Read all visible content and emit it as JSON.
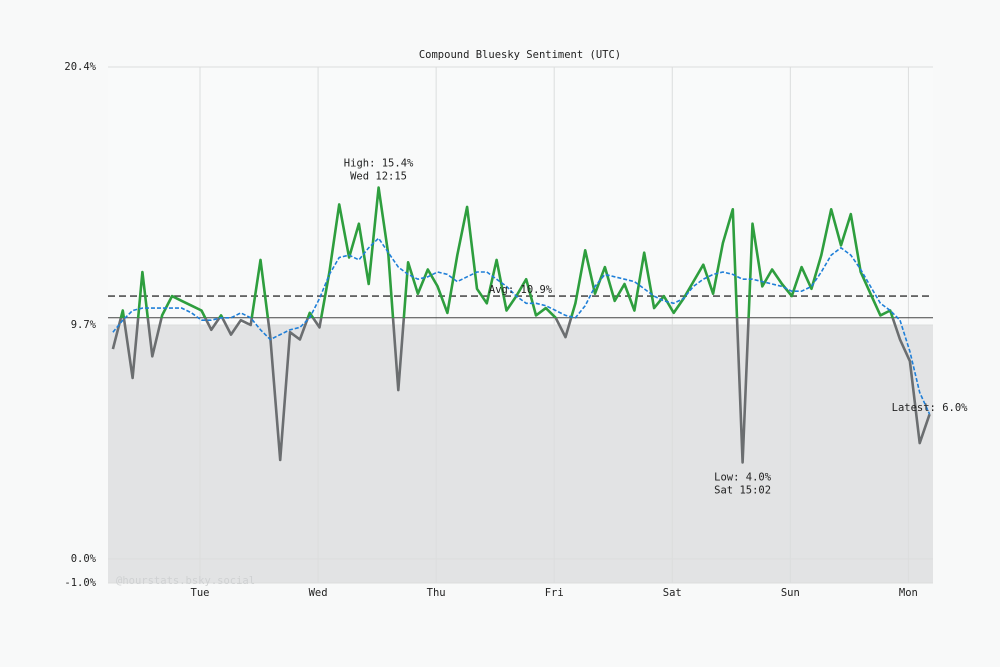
{
  "chart_data": {
    "type": "line",
    "title": "Compound Bluesky Sentiment (UTC)",
    "watermark": "@hourstats.bsky.social",
    "x": [
      1,
      3,
      5,
      7,
      9,
      11,
      13,
      15,
      17,
      19,
      21,
      23,
      25,
      27,
      29,
      31,
      33,
      35,
      37,
      39,
      41,
      43,
      45,
      47,
      49,
      51,
      53,
      55,
      57,
      59,
      61,
      63,
      65,
      67,
      69,
      71,
      73,
      75,
      77,
      79,
      81,
      83,
      85,
      87,
      89,
      91,
      93,
      95,
      97,
      99,
      101,
      103,
      105,
      107,
      109,
      111,
      113,
      115,
      117,
      119,
      121,
      123,
      125,
      127,
      129,
      131,
      133,
      135,
      137,
      139,
      141,
      143,
      145,
      147,
      149,
      151,
      153,
      155,
      157,
      159,
      161,
      163,
      165,
      167
    ],
    "series": [
      {
        "color": "#2e9e3e",
        "below_color": "#6b6e70",
        "values": [
          8.7,
          10.3,
          7.5,
          11.9,
          8.4,
          10.1,
          10.9,
          10.7,
          10.5,
          10.3,
          9.5,
          10.1,
          9.3,
          9.9,
          9.7,
          12.4,
          9.2,
          4.1,
          9.4,
          9.1,
          10.2,
          9.6,
          11.9,
          14.7,
          12.5,
          13.9,
          11.4,
          15.4,
          12.6,
          7.0,
          12.3,
          11.0,
          12.0,
          11.3,
          10.2,
          12.6,
          14.6,
          11.2,
          10.6,
          12.4,
          10.3,
          10.9,
          11.6,
          10.1,
          10.4,
          10.0,
          9.2,
          10.6,
          12.8,
          11.0,
          12.1,
          10.7,
          11.4,
          10.3,
          12.7,
          10.4,
          10.9,
          10.2,
          10.8,
          11.5,
          12.2,
          11.0,
          13.1,
          14.5,
          4.0,
          13.9,
          11.3,
          12.0,
          11.4,
          10.9,
          12.1,
          11.2,
          12.6,
          14.5,
          13.0,
          14.3,
          11.9,
          11.0,
          10.1,
          10.3,
          9.1,
          8.2,
          4.8,
          6.0
        ]
      },
      {
        "color": "#1f7fd8",
        "dashed": true,
        "values": [
          9.4,
          9.9,
          10.3,
          10.4,
          10.4,
          10.4,
          10.4,
          10.4,
          10.2,
          9.9,
          9.9,
          10.0,
          10.0,
          10.2,
          10.0,
          9.5,
          9.1,
          9.3,
          9.5,
          9.6,
          10.0,
          10.8,
          11.8,
          12.5,
          12.6,
          12.4,
          12.9,
          13.3,
          12.7,
          12.1,
          11.8,
          11.6,
          11.7,
          11.9,
          11.8,
          11.5,
          11.7,
          11.9,
          11.9,
          11.6,
          11.3,
          10.9,
          10.6,
          10.6,
          10.5,
          10.3,
          10.1,
          10.0,
          10.5,
          11.3,
          11.8,
          11.7,
          11.6,
          11.5,
          11.2,
          10.9,
          10.7,
          10.6,
          10.8,
          11.3,
          11.6,
          11.8,
          11.9,
          11.8,
          11.6,
          11.6,
          11.5,
          11.4,
          11.3,
          11.1,
          11.1,
          11.3,
          11.9,
          12.6,
          12.9,
          12.6,
          12.0,
          11.3,
          10.6,
          10.3,
          9.9,
          8.6,
          6.9,
          6.0
        ]
      }
    ],
    "xlim": [
      0,
      167.7
    ],
    "xticks": [
      {
        "value": 18.7,
        "label": "Tue"
      },
      {
        "value": 42.7,
        "label": "Wed"
      },
      {
        "value": 66.7,
        "label": "Thu"
      },
      {
        "value": 90.7,
        "label": "Fri"
      },
      {
        "value": 114.7,
        "label": "Sat"
      },
      {
        "value": 138.7,
        "label": "Sun"
      },
      {
        "value": 162.7,
        "label": "Mon"
      }
    ],
    "ylim": [
      -1.0,
      20.4
    ],
    "yticks": [
      {
        "value": -1.0,
        "label": "-1.0%"
      },
      {
        "value": 0.0,
        "label": "0.0%"
      },
      {
        "value": 9.7,
        "label": "9.7%"
      },
      {
        "value": 20.4,
        "label": "20.4%"
      }
    ],
    "grid": true,
    "baseline": 10.0,
    "shade_below": 9.7,
    "average": {
      "value": 10.9,
      "label": "Avg: 10.9%"
    },
    "annotations": [
      {
        "lines": [
          "High: 15.4%",
          "Wed 12:15"
        ],
        "x": 55,
        "y": 15.4,
        "placement": "above"
      },
      {
        "lines": [
          "Low: 4.0%",
          "Sat 15:02"
        ],
        "x": 129,
        "y": 4.0,
        "placement": "below"
      },
      {
        "lines": [
          "Latest: 6.0%"
        ],
        "x": 167,
        "y": 6.0,
        "placement": "side"
      }
    ]
  }
}
